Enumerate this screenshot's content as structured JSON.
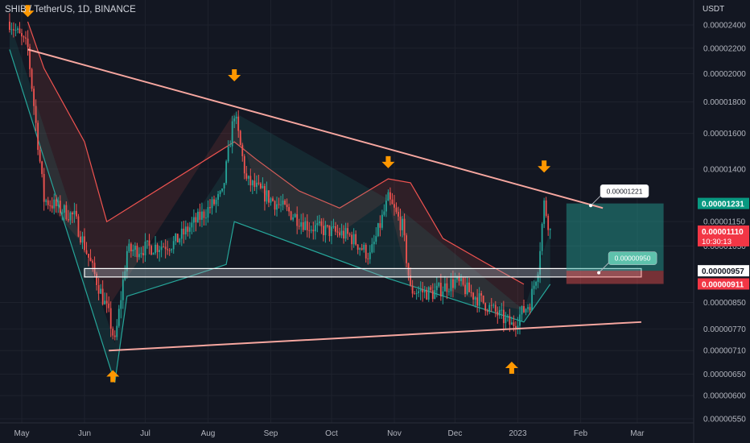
{
  "header": {
    "symbol": "SHIB / TetherUS, 1D, BINANCE",
    "currency": "USDT"
  },
  "colors": {
    "bg": "#131722",
    "grid": "#1e222d",
    "up": "#26a69a",
    "down": "#ef5350",
    "trend": "#f7a7a0",
    "arrow": "#ff9800",
    "support": "#ffffff"
  },
  "chart_data": {
    "type": "candlestick",
    "title": "SHIB / TetherUS, 1D, BINANCE",
    "ylabel": "USDT",
    "ylim": [
      5.3e-06,
      2.6e-06
    ],
    "y_scale": "log",
    "x_ticks": [
      "May",
      "Jun",
      "Jul",
      "Aug",
      "Sep",
      "Oct",
      "Nov",
      "Dec",
      "2023",
      "Feb",
      "Mar"
    ],
    "y_ticks": [
      "0.00002400",
      "0.00002200",
      "0.00002000",
      "0.00001800",
      "0.00001600",
      "0.00001400",
      "0.00001150",
      "0.00001050",
      "0.00000850",
      "0.00000770",
      "0.00000710",
      "0.00000650",
      "0.00000600",
      "0.00000550"
    ],
    "price_labels": [
      {
        "text": "0.00001231",
        "value": 1.231e-05,
        "color": "#089981"
      },
      {
        "text": "0.00001110",
        "value": 1.11e-05,
        "color": "#f23645",
        "countdown": "10:30:13"
      },
      {
        "text": "0.00000957",
        "value": 9.57e-06,
        "color": "#ffffff"
      },
      {
        "text": "0.00000911",
        "value": 9.11e-06,
        "color": "#f23645"
      }
    ],
    "annotations": [
      {
        "text": "0.00001221",
        "value": 1.221e-05
      },
      {
        "text": "0.00000950",
        "value": 9.5e-06
      }
    ],
    "trendlines": [
      {
        "name": "resistance",
        "from": [
          "2022-05-04",
          2.19e-05
        ],
        "to": [
          "2023-02-12",
          1.21e-05
        ]
      },
      {
        "name": "support",
        "from": [
          "2022-06-13",
          7.1e-06
        ],
        "to": [
          "2023-03-03",
          7.9e-06
        ]
      }
    ],
    "support_zone": {
      "from": "2022-06-01",
      "to": "2023-03-03",
      "low": 9.35e-06,
      "high": 9.65e-06
    },
    "position": {
      "entry": 9.57e-06,
      "target": 1.231e-05,
      "stop": 9.11e-06
    },
    "arrows": [
      {
        "dir": "down",
        "date": "2022-05-04"
      },
      {
        "dir": "down",
        "date": "2022-08-14"
      },
      {
        "dir": "down",
        "date": "2022-10-29"
      },
      {
        "dir": "down",
        "date": "2023-01-14"
      },
      {
        "dir": "up",
        "date": "2022-06-15"
      },
      {
        "dir": "up",
        "date": "2022-12-29"
      }
    ],
    "ohlc_key_points": [
      {
        "date": "2022-04-25",
        "value": 2.43e-05
      },
      {
        "date": "2022-05-04",
        "value": 2.2e-05
      },
      {
        "date": "2022-05-12",
        "value": 1.25e-05
      },
      {
        "date": "2022-05-27",
        "value": 1.17e-05
      },
      {
        "date": "2022-06-13",
        "value": 8.1e-06
      },
      {
        "date": "2022-06-16",
        "value": 7.3e-06
      },
      {
        "date": "2022-06-22",
        "value": 1.03e-05
      },
      {
        "date": "2022-07-15",
        "value": 1.06e-05
      },
      {
        "date": "2022-08-08",
        "value": 1.27e-05
      },
      {
        "date": "2022-08-14",
        "value": 1.73e-05
      },
      {
        "date": "2022-08-20",
        "value": 1.34e-05
      },
      {
        "date": "2022-09-01",
        "value": 1.25e-05
      },
      {
        "date": "2022-09-20",
        "value": 1.13e-05
      },
      {
        "date": "2022-10-10",
        "value": 1.09e-05
      },
      {
        "date": "2022-10-20",
        "value": 1.01e-05
      },
      {
        "date": "2022-10-29",
        "value": 1.25e-05
      },
      {
        "date": "2022-11-05",
        "value": 1.13e-05
      },
      {
        "date": "2022-11-09",
        "value": 8.9e-06
      },
      {
        "date": "2022-11-20",
        "value": 8.8e-06
      },
      {
        "date": "2022-12-01",
        "value": 9.2e-06
      },
      {
        "date": "2022-12-15",
        "value": 8.5e-06
      },
      {
        "date": "2022-12-29",
        "value": 7.8e-06
      },
      {
        "date": "2023-01-07",
        "value": 8.5e-06
      },
      {
        "date": "2023-01-11",
        "value": 9.7e-06
      },
      {
        "date": "2023-01-14",
        "value": 1.23e-05
      },
      {
        "date": "2023-01-17",
        "value": 1.11e-05
      }
    ],
    "supertrend_red": [
      {
        "date": "2022-05-04",
        "value": 2.43e-05
      },
      {
        "date": "2022-05-12",
        "value": 2.04e-05
      },
      {
        "date": "2022-06-01",
        "value": 1.55e-05
      },
      {
        "date": "2022-06-12",
        "value": 1.15e-05
      },
      {
        "date": "2022-08-14",
        "value": 1.55e-05
      },
      {
        "date": "2022-08-25",
        "value": 1.45e-05
      },
      {
        "date": "2022-09-15",
        "value": 1.29e-05
      },
      {
        "date": "2022-10-05",
        "value": 1.21e-05
      },
      {
        "date": "2022-10-29",
        "value": 1.35e-05
      },
      {
        "date": "2022-11-09",
        "value": 1.33e-05
      },
      {
        "date": "2022-11-25",
        "value": 1.08e-05
      },
      {
        "date": "2022-12-15",
        "value": 9.9e-06
      },
      {
        "date": "2023-01-04",
        "value": 9.1e-06
      }
    ],
    "supertrend_green": [
      {
        "date": "2022-04-25",
        "value": 2.19e-05
      },
      {
        "date": "2022-06-16",
        "value": 6.3e-06
      },
      {
        "date": "2022-06-22",
        "value": 8.7e-06
      },
      {
        "date": "2022-07-20",
        "value": 9.3e-06
      },
      {
        "date": "2022-08-10",
        "value": 9.8e-06
      },
      {
        "date": "2022-08-14",
        "value": 1.15e-05
      },
      {
        "date": "2022-10-29",
        "value": 9.3e-06
      },
      {
        "date": "2023-01-04",
        "value": 7.9e-06
      },
      {
        "date": "2023-01-17",
        "value": 9.1e-06
      }
    ]
  }
}
